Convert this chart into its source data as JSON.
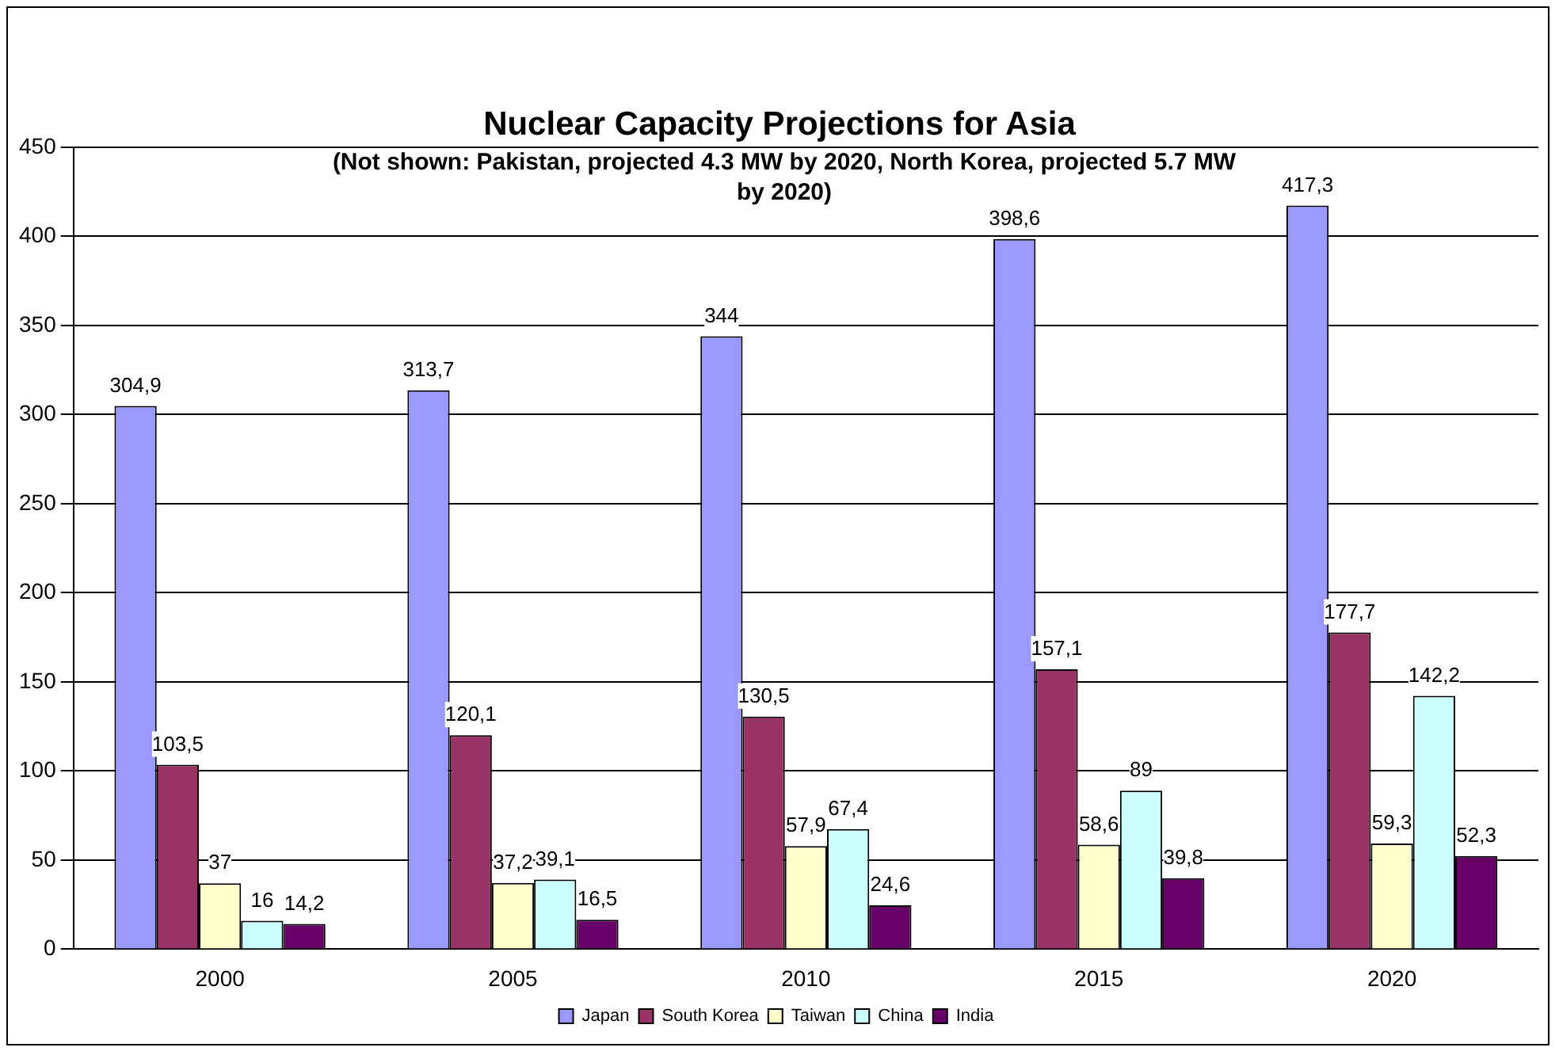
{
  "chart_data": {
    "type": "bar",
    "title": "Nuclear Capacity Projections for Asia",
    "subtitle": "(Not shown: Pakistan, projected 4.3 MW by 2020, North Korea, projected 5.7 MW by 2020)",
    "categories": [
      "2000",
      "2005",
      "2010",
      "2015",
      "2020"
    ],
    "series": [
      {
        "name": "Japan",
        "color": "#9999ff",
        "values": [
          304.9,
          313.7,
          344,
          398.6,
          417.3
        ],
        "value_labels": [
          "304,9",
          "313,7",
          "344",
          "398,6",
          "417,3"
        ]
      },
      {
        "name": "South Korea",
        "color": "#993366",
        "values": [
          103.5,
          120.1,
          130.5,
          157.1,
          177.7
        ],
        "value_labels": [
          "103,5",
          "120,1",
          "130,5",
          "157,1",
          "177,7"
        ]
      },
      {
        "name": "Taiwan",
        "color": "#ffffcc",
        "values": [
          37,
          37.2,
          57.9,
          58.6,
          59.3
        ],
        "value_labels": [
          "37",
          "37,2",
          "57,9",
          "58,6",
          "59,3"
        ]
      },
      {
        "name": "China",
        "color": "#ccffff",
        "values": [
          16,
          39.1,
          67.4,
          89,
          142.2
        ],
        "value_labels": [
          "16",
          "39,1",
          "67,4",
          "89",
          "142,2"
        ]
      },
      {
        "name": "India",
        "color": "#660066",
        "values": [
          14.2,
          16.5,
          24.6,
          39.8,
          52.3
        ],
        "value_labels": [
          "14,2",
          "16,5",
          "24,6",
          "39,8",
          "52,3"
        ]
      }
    ],
    "ylim": [
      0,
      450
    ],
    "yticks": [
      0,
      50,
      100,
      150,
      200,
      250,
      300,
      350,
      400,
      450
    ],
    "grid": "y",
    "legend": "bottom"
  }
}
